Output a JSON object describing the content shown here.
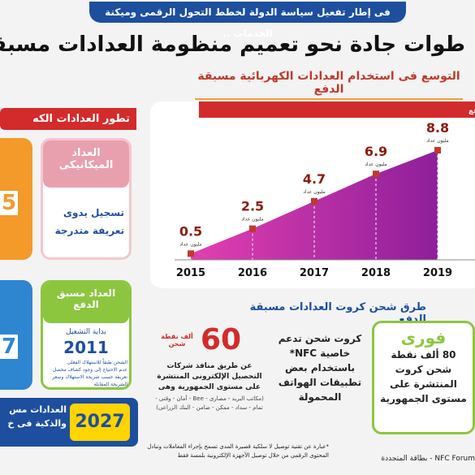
{
  "header": {
    "banner": "فى إطار تفعيل سياسة الدولة لخطط التحول الرقمى وميكنة الخدمات ..",
    "title": "طوات جادة نحو تعميم منظومة العدادات مسبقة الدفع",
    "subtitle": "التوسع فى استخدام العدادات الكهربائية مسبقة الدفع"
  },
  "evolution": {
    "title": "تطور العدادات الكه",
    "mechanical": {
      "name": "العداد الميكانيكى",
      "features": [
        "تسجيل يدوى",
        "تعريفة متدرجة"
      ]
    },
    "prepaid": {
      "name": "العداد مسبق الدفع",
      "start_label": "بداية التشغيل",
      "start_year": "2011",
      "features": [
        "الشحن طبقاً للاستهلاك الفعلى",
        "عدم الاحتياج إلى وجود كشاف محصل",
        "تعريفة حسب شريحة الاستهلاك وسعر الشريحة المقابلة"
      ]
    },
    "partial_numbers": [
      "5",
      "7"
    ],
    "footer_text": "العدادات مس والذكية فى خ",
    "footer_year": "2027"
  },
  "chart_data": {
    "type": "area",
    "title": "جهود الدولة فى مشروعات تركيب العدادات الكهربائية مسبقة الدفع",
    "categories": [
      "2015",
      "2016",
      "2017",
      "2018",
      "2019"
    ],
    "values": [
      0.5,
      2.5,
      4.7,
      6.9,
      8.8
    ],
    "unit": "مليون عداد",
    "color": "#b5178f"
  },
  "payment": {
    "title": "طرق شحن كروت العدادات مسبقة الدفع",
    "fawry": {
      "name": "فورى",
      "text": "80 ألف نقطة شحن كروت المنتشرة على مستوى الجمهورية"
    },
    "nfc": {
      "text": "كروت شحن تدعم خاصية NFC* باستخدام بعض تطبيقات الهواتف المحمولة"
    },
    "outlets": {
      "number": "60",
      "unit": "ألف نقطة شحن",
      "text": "عن طريق منافذ شركات التحصيل الإلكترونى المنتشرة على مستوى الجمهورية وهى",
      "companies": "(مكاتب البريد - مصارى - Bee - أمان - وقتى - تمام - سداد - ممكن - ضامن - البنك الزراعى)"
    },
    "footnote": "*عبارة عن تقنية توصيل لا سلكية قصيرة المدى تسمح بإجراء المعاملات وتبادل المحتوى الرقمى من خلال توصيل الأجهزة الإلكترونية بلمسة فقط",
    "source": "NFC Forum - بطاقة المتجددة"
  }
}
